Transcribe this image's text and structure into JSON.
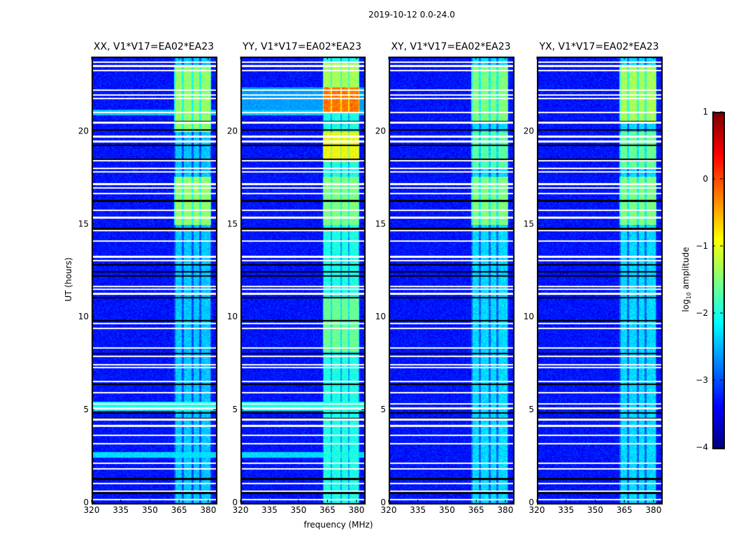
{
  "chart_data": {
    "type": "heatmap",
    "title": "2019-10-12 0.0-24.0",
    "xlabel": "frequency (MHz)",
    "ylabel": "UT (hours)",
    "xlim": [
      320,
      384
    ],
    "ylim": [
      0,
      24
    ],
    "xticks": [
      "320",
      "335",
      "350",
      "365",
      "380"
    ],
    "xtick_values": [
      320,
      335,
      350,
      365,
      380
    ],
    "yticks": [
      "0",
      "5",
      "10",
      "15",
      "20"
    ],
    "ytick_values": [
      0,
      5,
      10,
      15,
      20
    ],
    "colorbar": {
      "label_main": "log",
      "label_sub": "10",
      "label_rest": " amplitude",
      "range": [
        -4,
        1
      ],
      "ticks": [
        "−4",
        "−3",
        "−2",
        "−1",
        "0",
        "1"
      ],
      "tick_values": [
        -4,
        -3,
        -2,
        -1,
        0,
        1
      ],
      "colormap": "jet"
    },
    "background_level": -3.3,
    "rfi_band_mhz": [
      362,
      381
    ],
    "rfi_channels_mhz": [
      [
        362.5,
        366
      ],
      [
        367,
        371
      ],
      [
        372,
        375
      ],
      [
        376,
        380.5
      ]
    ],
    "flagged_hours_white": [
      23.75,
      23.55,
      23.3,
      22.25,
      22.0,
      21.8,
      21.05,
      20.5,
      19.75,
      19.5,
      18.45,
      18.05,
      17.85,
      17.2,
      17.0,
      16.7,
      15.8,
      15.4,
      14.7,
      14.15,
      13.3,
      13.1,
      11.7,
      11.55,
      11.3,
      9.7,
      9.45,
      8.4,
      7.95,
      7.5,
      7.35,
      6.6,
      6.0,
      5.4,
      5.15,
      4.55,
      4.2,
      3.7,
      3.25,
      2.2,
      1.9,
      1.1,
      0.7,
      0.25
    ],
    "flagged_hours_black": [
      20.55,
      20.1,
      19.3,
      18.55,
      16.3,
      14.8,
      12.85,
      12.5,
      12.25,
      11.1,
      9.85,
      8.1,
      6.45,
      4.9,
      4.6,
      1.35,
      0.6
    ],
    "panels": [
      {
        "title": "XX, V1*V17=EA02*EA23",
        "rfi_segments": [
          {
            "start": 0,
            "end": 24,
            "level": -2.4
          },
          {
            "start": 20,
            "end": 23.5,
            "level": -1.4
          },
          {
            "start": 15,
            "end": 17.6,
            "level": -1.4
          }
        ],
        "broadband_segments": [
          {
            "start": 5.0,
            "end": 5.5,
            "level": -2.0
          },
          {
            "start": 2.5,
            "end": 2.8,
            "level": -2.3
          },
          {
            "start": 20.9,
            "end": 21.2,
            "level": -2.4
          }
        ]
      },
      {
        "title": "YY, V1*V17=EA02*EA23",
        "rfi_segments": [
          {
            "start": 0,
            "end": 24,
            "level": -2.0
          },
          {
            "start": 21.0,
            "end": 22.4,
            "level": -0.2
          },
          {
            "start": 18.4,
            "end": 20.0,
            "level": -0.9
          },
          {
            "start": 22.4,
            "end": 23.7,
            "level": -1.3
          },
          {
            "start": 15,
            "end": 17.6,
            "level": -1.5
          },
          {
            "start": 8.2,
            "end": 11.1,
            "level": -1.6
          }
        ],
        "broadband_segments": [
          {
            "start": 5.0,
            "end": 5.5,
            "level": -2.0
          },
          {
            "start": 2.5,
            "end": 2.8,
            "level": -2.3
          },
          {
            "start": 20.9,
            "end": 21.2,
            "level": -2.4
          },
          {
            "start": 21.0,
            "end": 22.4,
            "level": -2.6
          }
        ]
      },
      {
        "title": "XY, V1*V17=EA02*EA23",
        "rfi_segments": [
          {
            "start": 0,
            "end": 24,
            "level": -2.3
          },
          {
            "start": 20.5,
            "end": 23.5,
            "level": -1.5
          },
          {
            "start": 15,
            "end": 17.6,
            "level": -1.5
          },
          {
            "start": 18,
            "end": 20,
            "level": -1.7
          }
        ],
        "broadband_segments": []
      },
      {
        "title": "YX, V1*V17=EA02*EA23",
        "rfi_segments": [
          {
            "start": 0,
            "end": 24,
            "level": -2.3
          },
          {
            "start": 20.5,
            "end": 23.5,
            "level": -1.3
          },
          {
            "start": 15,
            "end": 17.6,
            "level": -1.5
          },
          {
            "start": 18,
            "end": 20,
            "level": -1.6
          }
        ],
        "broadband_segments": []
      }
    ]
  }
}
